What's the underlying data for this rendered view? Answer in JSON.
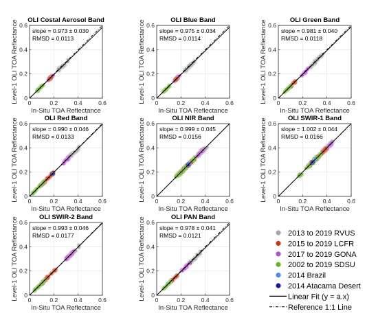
{
  "figure": {
    "colors": {
      "rvus": "#a6a6a6",
      "lcfr": "#c83a10",
      "gona": "#a855c8",
      "sdsu": "#6ab02a",
      "brazil": "#4a8fd8",
      "atacama": "#1a1a9a",
      "fit": "#000000",
      "reference": "#000000"
    }
  },
  "legend": {
    "items": [
      {
        "key": "rvus",
        "label": "2013 to 2019 RVUS",
        "marker": "circle"
      },
      {
        "key": "lcfr",
        "label": "2015 to 2019 LCFR",
        "marker": "circle"
      },
      {
        "key": "gona",
        "label": "2017 to 2019 GONA",
        "marker": "circle"
      },
      {
        "key": "sdsu",
        "label": "2002 to 2019 SDSU",
        "marker": "circle"
      },
      {
        "key": "brazil",
        "label": "2014 Brazil",
        "marker": "circle"
      },
      {
        "key": "atacama",
        "label": "2014 Atacama Desert",
        "marker": "circle"
      },
      {
        "key": "fit",
        "label": "Linear Fit (y = a.x)",
        "marker": "solid-line"
      },
      {
        "key": "reference",
        "label": "Reference 1:1 Line",
        "marker": "dashdot-line"
      }
    ]
  },
  "chart_data": [
    {
      "type": "scatter",
      "title": "OLI Costal Aerosol Band",
      "xlabel": "In-Situ TOA Reflectance",
      "ylabel": "Level-1 OLI TOA Reflectance",
      "xlim": [
        0,
        0.6
      ],
      "ylim": [
        0,
        0.6
      ],
      "xticks": [
        "0",
        "0.2",
        "0.4",
        "0.6"
      ],
      "yticks": [
        "0",
        "0.2",
        "0.4",
        "0.6"
      ],
      "annotation": [
        "slope = 0.973 ± 0.030",
        "RMSD = 0.0113"
      ],
      "fit_slope": 0.973,
      "clusters": [
        {
          "series": "rvus",
          "x": [
            0.23,
            0.32
          ],
          "spread": 0.012
        },
        {
          "series": "gona",
          "x": [
            0.15,
            0.2
          ],
          "spread": 0.008
        },
        {
          "series": "lcfr",
          "x": [
            0.16,
            0.18
          ],
          "spread": 0.006
        },
        {
          "series": "sdsu",
          "x": [
            0.06,
            0.12
          ],
          "spread": 0.006
        }
      ]
    },
    {
      "type": "scatter",
      "title": "OLI Blue Band",
      "xlabel": "In-Situ TOA Reflectance",
      "ylabel": "Level-1 OLI TOA Reflectance",
      "xlim": [
        0,
        0.6
      ],
      "ylim": [
        0,
        0.6
      ],
      "xticks": [
        "0",
        "0.2",
        "0.4",
        "0.6"
      ],
      "yticks": [
        "0",
        "0.2",
        "0.4",
        "0.6"
      ],
      "annotation": [
        "slope = 0.975 ± 0.034",
        "RMSD = 0.0114"
      ],
      "fit_slope": 0.975,
      "clusters": [
        {
          "series": "rvus",
          "x": [
            0.23,
            0.32
          ],
          "spread": 0.012
        },
        {
          "series": "gona",
          "x": [
            0.14,
            0.19
          ],
          "spread": 0.008
        },
        {
          "series": "lcfr",
          "x": [
            0.15,
            0.17
          ],
          "spread": 0.006
        },
        {
          "series": "sdsu",
          "x": [
            0.05,
            0.11
          ],
          "spread": 0.006
        }
      ]
    },
    {
      "type": "scatter",
      "title": "OLI Green Band",
      "xlabel": "In-Situ TOA Reflectance",
      "ylabel": "Level-1 OLI TOA Reflectance",
      "xlim": [
        0,
        0.6
      ],
      "ylim": [
        0,
        0.6
      ],
      "xticks": [
        "0",
        "0.2",
        "0.4",
        "0.6"
      ],
      "yticks": [
        "0",
        "0.2",
        "0.4",
        "0.6"
      ],
      "annotation": [
        "slope = 0.981 ± 0.040",
        "RMSD = 0.0118"
      ],
      "fit_slope": 0.981,
      "clusters": [
        {
          "series": "rvus",
          "x": [
            0.26,
            0.37
          ],
          "spread": 0.014
        },
        {
          "series": "gona",
          "x": [
            0.19,
            0.25
          ],
          "spread": 0.008
        },
        {
          "series": "lcfr",
          "x": [
            0.1,
            0.16
          ],
          "spread": 0.008
        },
        {
          "series": "sdsu",
          "x": [
            0.05,
            0.11
          ],
          "spread": 0.006
        }
      ]
    },
    {
      "type": "scatter",
      "title": "OLI Red Band",
      "xlabel": "In-Situ TOA Reflectance",
      "ylabel": "Level-1 OLI TOA Reflectance",
      "xlim": [
        0,
        0.6
      ],
      "ylim": [
        0,
        0.6
      ],
      "xticks": [
        "0",
        "0.2",
        "0.4",
        "0.6"
      ],
      "yticks": [
        "0",
        "0.2",
        "0.4",
        "0.6"
      ],
      "annotation": [
        "slope = 0.990 ± 0.046",
        "RMSD = 0.0133"
      ],
      "fit_slope": 0.99,
      "clusters": [
        {
          "series": "rvus",
          "x": [
            0.31,
            0.41
          ],
          "spread": 0.015
        },
        {
          "series": "gona",
          "x": [
            0.28,
            0.33
          ],
          "spread": 0.01
        },
        {
          "series": "lcfr",
          "x": [
            0.08,
            0.2
          ],
          "spread": 0.01
        },
        {
          "series": "sdsu",
          "x": [
            0.02,
            0.12
          ],
          "spread": 0.007
        },
        {
          "series": "atacama",
          "x": [
            0.19,
            0.19
          ],
          "spread": 0.004
        }
      ]
    },
    {
      "type": "scatter",
      "title": "OLI NIR Band",
      "xlabel": "In-Situ TOA Reflectance",
      "ylabel": "Level-1 OLI TOA Reflectance",
      "xlim": [
        0,
        0.6
      ],
      "ylim": [
        0,
        0.6
      ],
      "xticks": [
        "0",
        "0.2",
        "0.4",
        "0.6"
      ],
      "yticks": [
        "0",
        "0.2",
        "0.4",
        "0.6"
      ],
      "annotation": [
        "slope = 0.999 ± 0.045",
        "RMSD = 0.0156"
      ],
      "fit_slope": 0.999,
      "clusters": [
        {
          "series": "rvus",
          "x": [
            0.33,
            0.42
          ],
          "spread": 0.015
        },
        {
          "series": "gona",
          "x": [
            0.33,
            0.39
          ],
          "spread": 0.01
        },
        {
          "series": "lcfr",
          "x": [
            0.18,
            0.32
          ],
          "spread": 0.014
        },
        {
          "series": "sdsu",
          "x": [
            0.15,
            0.32
          ],
          "spread": 0.014
        },
        {
          "series": "brazil",
          "x": [
            0.27,
            0.27
          ],
          "spread": 0.004
        },
        {
          "series": "atacama",
          "x": [
            0.26,
            0.26
          ],
          "spread": 0.004
        }
      ]
    },
    {
      "type": "scatter",
      "title": "OLI SWIR-1 Band",
      "xlabel": "In-Situ TOA Reflectance",
      "ylabel": "Level-1 OLI TOA Reflectance",
      "xlim": [
        0,
        0.6
      ],
      "ylim": [
        0,
        0.6
      ],
      "xticks": [
        "0",
        "0.2",
        "0.4",
        "0.6"
      ],
      "yticks": [
        "0",
        "0.2",
        "0.4",
        "0.6"
      ],
      "annotation": [
        "slope = 1.002 ± 0.044",
        "RMSD = 0.0166"
      ],
      "fit_slope": 1.002,
      "clusters": [
        {
          "series": "rvus",
          "x": [
            0.36,
            0.45
          ],
          "spread": 0.015
        },
        {
          "series": "gona",
          "x": [
            0.38,
            0.44
          ],
          "spread": 0.012
        },
        {
          "series": "lcfr",
          "x": [
            0.24,
            0.4
          ],
          "spread": 0.014
        },
        {
          "series": "sdsu",
          "x": [
            0.16,
            0.35
          ],
          "spread": 0.014
        },
        {
          "series": "brazil",
          "x": [
            0.3,
            0.3
          ],
          "spread": 0.004
        },
        {
          "series": "atacama",
          "x": [
            0.28,
            0.28
          ],
          "spread": 0.004
        }
      ]
    },
    {
      "type": "scatter",
      "title": "OLI SWIR-2 Band",
      "xlabel": "In-Situ TOA Reflectance",
      "ylabel": "Level-1 OLI TOA Reflectance",
      "xlim": [
        0,
        0.6
      ],
      "ylim": [
        0,
        0.6
      ],
      "xticks": [
        "0",
        "0.2",
        "0.4",
        "0.6"
      ],
      "yticks": [
        "0",
        "0.2",
        "0.4",
        "0.6"
      ],
      "annotation": [
        "slope = 0.993 ± 0.046",
        "RMSD = 0.0177"
      ],
      "fit_slope": 0.993,
      "clusters": [
        {
          "series": "rvus",
          "x": [
            0.31,
            0.41
          ],
          "spread": 0.015
        },
        {
          "series": "gona",
          "x": [
            0.3,
            0.36
          ],
          "spread": 0.012
        },
        {
          "series": "lcfr",
          "x": [
            0.1,
            0.22
          ],
          "spread": 0.01
        },
        {
          "series": "sdsu",
          "x": [
            0.03,
            0.13
          ],
          "spread": 0.007
        }
      ]
    },
    {
      "type": "scatter",
      "title": "OLI PAN Band",
      "xlabel": "In-Situ TOA Reflectance",
      "ylabel": "Level-1 OLI TOA Reflectance",
      "xlim": [
        0,
        0.6
      ],
      "ylim": [
        0,
        0.6
      ],
      "xticks": [
        "0",
        "0.2",
        "0.4",
        "0.6"
      ],
      "yticks": [
        "0",
        "0.2",
        "0.4",
        "0.6"
      ],
      "annotation": [
        "slope = 0.978 ± 0.041",
        "RMSD = 0.0121"
      ],
      "fit_slope": 0.978,
      "clusters": [
        {
          "series": "rvus",
          "x": [
            0.26,
            0.36
          ],
          "spread": 0.014
        },
        {
          "series": "gona",
          "x": [
            0.2,
            0.28
          ],
          "spread": 0.01
        },
        {
          "series": "lcfr",
          "x": [
            0.12,
            0.17
          ],
          "spread": 0.007
        },
        {
          "series": "sdsu",
          "x": [
            0.05,
            0.12
          ],
          "spread": 0.006
        }
      ]
    }
  ]
}
